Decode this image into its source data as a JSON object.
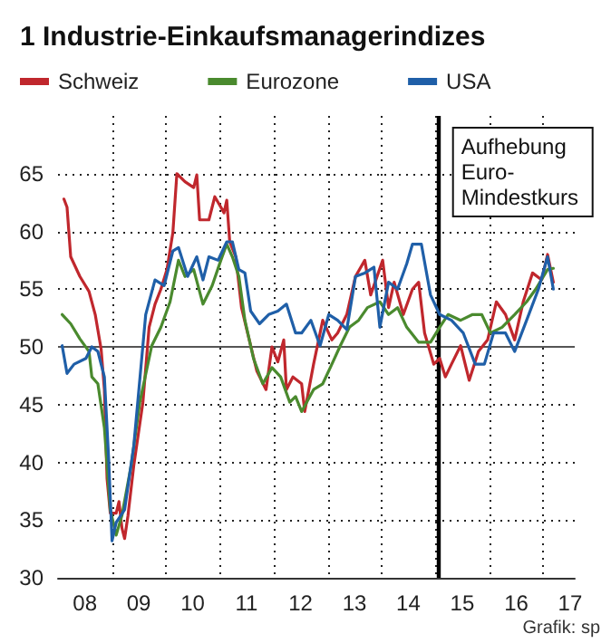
{
  "chart_data": {
    "type": "line",
    "title": "1 Industrie-Einkaufsmanagerindizes",
    "xlim": [
      "2008-01-01",
      "2017-08-01"
    ],
    "ylim": [
      30,
      70
    ],
    "xticks": [
      {
        "value": "2008-07-01",
        "label": "08"
      },
      {
        "value": "2009-01-01",
        "label": null
      },
      {
        "value": "2009-07-01",
        "label": "09"
      },
      {
        "value": "2010-01-01",
        "label": null
      },
      {
        "value": "2010-07-01",
        "label": "10"
      },
      {
        "value": "2011-01-01",
        "label": null
      },
      {
        "value": "2011-07-01",
        "label": "11"
      },
      {
        "value": "2012-01-01",
        "label": null
      },
      {
        "value": "2012-07-01",
        "label": "12"
      },
      {
        "value": "2013-01-01",
        "label": null
      },
      {
        "value": "2013-07-01",
        "label": "13"
      },
      {
        "value": "2014-01-01",
        "label": null
      },
      {
        "value": "2014-07-01",
        "label": "14"
      },
      {
        "value": "2015-01-01",
        "label": null
      },
      {
        "value": "2015-07-01",
        "label": "15"
      },
      {
        "value": "2016-01-01",
        "label": null
      },
      {
        "value": "2016-07-01",
        "label": "16"
      },
      {
        "value": "2017-01-01",
        "label": null
      },
      {
        "value": "2017-07-01",
        "label": "17"
      }
    ],
    "yticks": [
      30,
      35,
      40,
      45,
      50,
      55,
      60,
      65
    ],
    "grid": true,
    "legend": "top",
    "marker": "none",
    "line_style": "solid",
    "series": [
      {
        "name": "Schweiz",
        "color": "#c0272d",
        "x": [
          "2008-02-10",
          "2008-03-02",
          "2008-03-27",
          "2008-05-28",
          "2008-07-29",
          "2008-09-09",
          "2008-10-19",
          "2008-11-10",
          "2008-11-28",
          "2008-12-20",
          "2009-01-29",
          "2009-02-17",
          "2009-03-09",
          "2009-03-27",
          "2009-04-19",
          "2009-05-28",
          "2009-07-29",
          "2009-09-09",
          "2009-10-19",
          "2009-11-28",
          "2010-01-08",
          "2010-02-17",
          "2010-03-16",
          "2010-05-10",
          "2010-07-08",
          "2010-07-29",
          "2010-08-17",
          "2010-10-19",
          "2010-11-28",
          "2011-01-08",
          "2011-01-29",
          "2011-02-17",
          "2011-03-09",
          "2011-04-19",
          "2011-05-28",
          "2011-07-08",
          "2011-09-09",
          "2011-11-10",
          "2011-12-20",
          "2012-01-29",
          "2012-03-09",
          "2012-03-27",
          "2012-05-10",
          "2012-07-08",
          "2012-07-29",
          "2012-09-27",
          "2012-11-28",
          "2013-01-29",
          "2013-03-09",
          "2013-05-10",
          "2013-07-08",
          "2013-09-09",
          "2013-10-19",
          "2014-01-08",
          "2014-02-17",
          "2014-03-27",
          "2014-05-28",
          "2014-07-29",
          "2014-09-09",
          "2014-10-19",
          "2014-12-20",
          "2015-01-29",
          "2015-03-09",
          "2015-04-19",
          "2015-06-20",
          "2015-08-17",
          "2015-10-19",
          "2015-12-20",
          "2016-02-17",
          "2016-04-19",
          "2016-06-20",
          "2016-08-17",
          "2016-10-19",
          "2016-12-20",
          "2017-01-29",
          "2017-03-09"
        ],
        "values": [
          62.8,
          62.1,
          57.8,
          56.1,
          54.8,
          52.8,
          49.8,
          46.3,
          38.6,
          35.6,
          35.6,
          36.6,
          34.3,
          33.4,
          35.4,
          39.7,
          45.2,
          51.7,
          53.7,
          55,
          56.7,
          59.9,
          65,
          64.3,
          63.8,
          64.9,
          61,
          61,
          63,
          62.1,
          61.6,
          62.7,
          59.1,
          57.8,
          53.4,
          51.2,
          47.9,
          46.3,
          50,
          48.7,
          50.6,
          46.3,
          47.4,
          46.8,
          44.4,
          48.5,
          52.3,
          50.6,
          51.2,
          52.8,
          56.1,
          57.5,
          54.5,
          57.5,
          53.4,
          55.6,
          52.8,
          55,
          55.6,
          51.2,
          48.5,
          49,
          47.4,
          48.5,
          50.1,
          47.1,
          49.6,
          50.6,
          53.9,
          52.8,
          50.6,
          53.9,
          56.4,
          55.8,
          58,
          55.6
        ]
      },
      {
        "name": "Eurozone",
        "color": "#4a8a2e",
        "x": [
          "2008-01-29",
          "2008-03-27",
          "2008-05-28",
          "2008-07-29",
          "2008-08-17",
          "2008-09-27",
          "2008-11-10",
          "2008-12-20",
          "2009-01-29",
          "2009-03-09",
          "2009-05-10",
          "2009-07-08",
          "2009-09-27",
          "2009-11-28",
          "2010-01-29",
          "2010-03-27",
          "2010-05-10",
          "2010-07-08",
          "2010-09-09",
          "2010-11-10",
          "2011-01-08",
          "2011-02-17",
          "2011-03-27",
          "2011-05-10",
          "2011-06-20",
          "2011-08-17",
          "2011-10-19",
          "2011-12-20",
          "2012-02-17",
          "2012-04-19",
          "2012-05-28",
          "2012-07-08",
          "2012-09-27",
          "2012-11-28",
          "2013-01-29",
          "2013-03-27",
          "2013-05-28",
          "2013-07-29",
          "2013-09-27",
          "2013-12-20",
          "2014-02-17",
          "2014-04-19",
          "2014-06-20",
          "2014-09-09",
          "2014-11-28",
          "2015-01-29",
          "2015-03-27",
          "2015-06-20",
          "2015-09-09",
          "2015-11-10",
          "2016-01-08",
          "2016-03-27",
          "2016-06-20",
          "2016-09-09",
          "2016-11-10",
          "2017-01-29",
          "2017-03-09"
        ],
        "values": [
          52.8,
          52,
          50.7,
          49.6,
          47.4,
          46.8,
          43,
          35.9,
          33.7,
          35.4,
          39.7,
          45.2,
          50.1,
          51.7,
          53.9,
          57.5,
          56.1,
          56.7,
          53.7,
          55.3,
          57.5,
          58.9,
          57.8,
          56.1,
          52.3,
          49,
          46.8,
          48.2,
          47.4,
          45.2,
          45.7,
          44.4,
          46.3,
          46.8,
          48.5,
          50.1,
          51.7,
          52.3,
          53.4,
          53.9,
          52.8,
          53.4,
          51.7,
          50.4,
          50.4,
          51.7,
          52.8,
          52.3,
          52.8,
          52.8,
          51.2,
          51.7,
          52.8,
          53.9,
          55,
          56.7,
          56.8
        ]
      },
      {
        "name": "USA",
        "color": "#1f5fa8",
        "x": [
          "2008-01-29",
          "2008-03-02",
          "2008-04-19",
          "2008-07-08",
          "2008-08-17",
          "2008-09-27",
          "2008-11-10",
          "2008-12-09",
          "2009-01-01",
          "2009-01-29",
          "2009-03-27",
          "2009-05-28",
          "2009-08-17",
          "2009-10-19",
          "2009-12-20",
          "2010-02-17",
          "2010-03-27",
          "2010-05-28",
          "2010-07-29",
          "2010-09-09",
          "2010-10-19",
          "2010-12-20",
          "2011-02-17",
          "2011-03-27",
          "2011-05-10",
          "2011-06-20",
          "2011-07-29",
          "2011-09-27",
          "2011-11-28",
          "2012-01-29",
          "2012-03-27",
          "2012-05-28",
          "2012-07-08",
          "2012-09-09",
          "2012-11-10",
          "2013-01-08",
          "2013-03-09",
          "2013-05-10",
          "2013-07-08",
          "2013-09-09",
          "2013-11-10",
          "2013-12-20",
          "2014-02-17",
          "2014-04-19",
          "2014-06-20",
          "2014-07-29",
          "2014-09-27",
          "2014-11-28",
          "2015-01-29",
          "2015-04-19",
          "2015-07-08",
          "2015-09-27",
          "2015-11-28",
          "2016-01-29",
          "2016-04-19",
          "2016-06-20",
          "2016-09-09",
          "2016-11-28",
          "2017-01-29",
          "2017-03-09"
        ],
        "values": [
          50.1,
          47.7,
          48.5,
          49,
          50,
          49.6,
          47.4,
          40.3,
          33.2,
          34.8,
          35.9,
          41.4,
          52.8,
          55.8,
          55.3,
          58.3,
          58.6,
          56.1,
          57.8,
          55.8,
          57.8,
          57.5,
          59.1,
          59.1,
          56.7,
          56.4,
          53.1,
          52,
          52.8,
          53.1,
          53.7,
          51.2,
          51.2,
          52.3,
          50.1,
          52.8,
          52.3,
          51.5,
          56.1,
          56.4,
          56.9,
          51.7,
          55.6,
          55,
          57.2,
          58.9,
          58.9,
          54.5,
          52.8,
          52.3,
          51.2,
          48.5,
          48.5,
          51.2,
          51.2,
          49.6,
          52.3,
          55,
          57.8,
          55
        ]
      }
    ],
    "ref_lines": [
      {
        "axis": "y",
        "value": 50,
        "color": "#555555"
      },
      {
        "axis": "x",
        "value": "2015-01-15",
        "label": "Aufhebung Euro-Mindestkurs",
        "color": "#000000"
      }
    ],
    "annotations": [
      "Grafik: sp"
    ]
  }
}
